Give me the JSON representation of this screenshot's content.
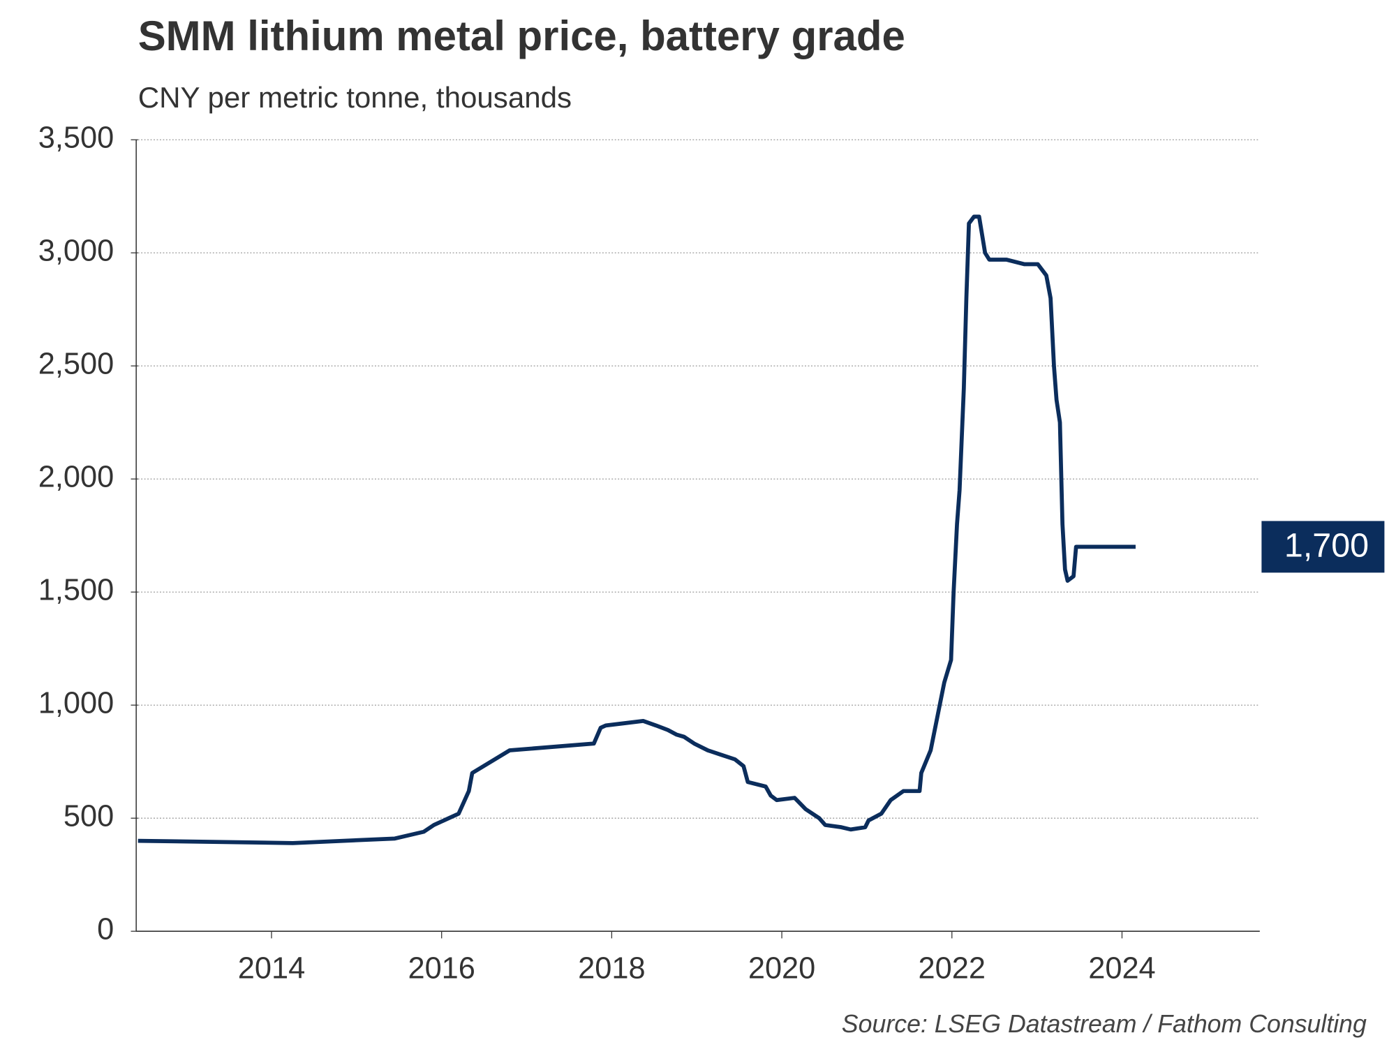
{
  "chart_data": {
    "type": "line",
    "title": "SMM lithium metal price, battery grade",
    "subtitle": "CNY per metric tonne, thousands",
    "source": "Source: LSEG Datastream / Fathom Consulting",
    "x": [
      2012.43,
      2014.25,
      2015.45,
      2015.79,
      2015.91,
      2016.2,
      2016.32,
      2016.36,
      2016.8,
      2017.79,
      2017.87,
      2017.93,
      2018.37,
      2018.52,
      2018.66,
      2018.76,
      2018.85,
      2018.97,
      2019.13,
      2019.29,
      2019.45,
      2019.55,
      2019.6,
      2019.81,
      2019.87,
      2019.94,
      2020.15,
      2020.28,
      2020.44,
      2020.51,
      2020.7,
      2020.81,
      2020.98,
      2021.02,
      2021.17,
      2021.28,
      2021.43,
      2021.62,
      2021.64,
      2021.75,
      2021.83,
      2021.91,
      2021.99,
      2022.02,
      2022.06,
      2022.09,
      2022.14,
      2022.17,
      2022.2,
      2022.26,
      2022.32,
      2022.39,
      2022.44,
      2022.64,
      2022.85,
      2023.01,
      2023.11,
      2023.16,
      2023.2,
      2023.23,
      2023.27,
      2023.3,
      2023.33,
      2023.36,
      2023.43,
      2023.46,
      2024.16
    ],
    "series": [
      {
        "color": "#0b2d5c",
        "values": [
          400,
          390,
          410,
          440,
          470,
          520,
          620,
          700,
          800,
          830,
          900,
          910,
          930,
          910,
          890,
          870,
          860,
          830,
          800,
          780,
          760,
          730,
          660,
          640,
          600,
          580,
          590,
          540,
          500,
          470,
          460,
          450,
          460,
          490,
          520,
          580,
          620,
          620,
          700,
          800,
          950,
          1100,
          1200,
          1500,
          1800,
          1950,
          2400,
          2800,
          3130,
          3160,
          3160,
          3000,
          2970,
          2970,
          2950,
          2950,
          2900,
          2800,
          2500,
          2350,
          2250,
          1800,
          1600,
          1550,
          1570,
          1700,
          1700
        ],
        "value_labels": [
          null,
          null,
          null,
          null,
          null,
          null,
          null,
          null,
          null,
          null,
          null,
          null,
          null,
          null,
          null,
          null,
          null,
          null,
          null,
          null,
          null,
          null,
          null,
          null,
          null,
          null,
          null,
          null,
          null,
          null,
          null,
          null,
          null,
          null,
          null,
          null,
          null,
          null,
          null,
          null,
          null,
          null,
          null,
          null,
          null,
          null,
          null,
          null,
          null,
          null,
          null,
          null,
          null,
          null,
          null,
          null,
          null,
          null,
          null,
          null,
          null,
          null,
          null,
          null,
          null,
          null,
          "1,700"
        ]
      }
    ],
    "xlim": [
      2012.43,
      2025.62
    ],
    "xticks": [
      2014,
      2016,
      2018,
      2020,
      2022,
      2024
    ],
    "ylim": [
      0,
      3500
    ],
    "yticks": [
      0,
      {
        "value": 500,
        "label": "500"
      },
      {
        "value": 1000,
        "label": "1,000"
      },
      {
        "value": 1500,
        "label": "1,500"
      },
      {
        "value": 2000,
        "label": "2,000"
      },
      {
        "value": 2500,
        "label": "2,500"
      },
      {
        "value": 3000,
        "label": "3,000"
      },
      {
        "value": 3500,
        "label": "3,500"
      }
    ],
    "grid": true
  }
}
